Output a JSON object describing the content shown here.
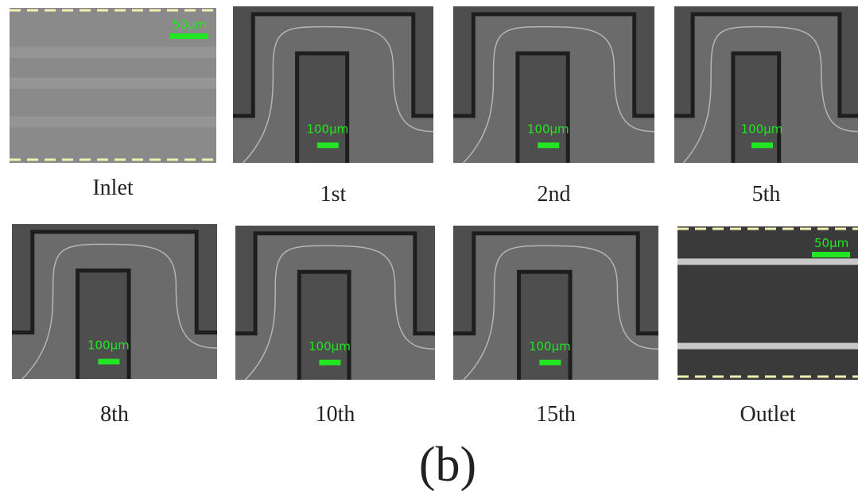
{
  "panels": [
    {
      "label": "Inlet",
      "scale_bar": "50μm"
    },
    {
      "label": "1st",
      "scale_bar": "100μm"
    },
    {
      "label": "2nd",
      "scale_bar": "100μm"
    },
    {
      "label": "5th",
      "scale_bar": "100μm"
    },
    {
      "label": "8th",
      "scale_bar": "100μm"
    },
    {
      "label": "10th",
      "scale_bar": "100μm"
    },
    {
      "label": "15th",
      "scale_bar": "100μm"
    },
    {
      "label": "Outlet",
      "scale_bar": "50μm"
    }
  ],
  "caption": "(b)"
}
